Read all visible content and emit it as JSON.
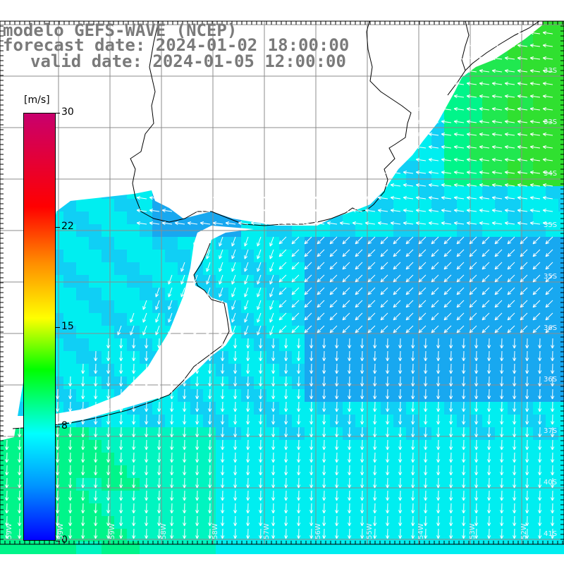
{
  "titles": {
    "line1": "modelo GEFS-WAVE (NCEP)",
    "line2": "forecast date: 2024-01-02 18:00:00",
    "line3": "valid date: 2024-01-05 12:00:00"
  },
  "colorbar": {
    "unit": "[m/s]",
    "ticks": [
      {
        "value": 30,
        "label": "30"
      },
      {
        "value": 22,
        "label": "22"
      },
      {
        "value": 15,
        "label": "15"
      },
      {
        "value": 8,
        "label": "8"
      },
      {
        "value": 0,
        "label": "0"
      }
    ]
  },
  "map": {
    "lat_labels": [
      "33S",
      "33S",
      "34S",
      "35S",
      "35S",
      "36S",
      "36S",
      "37S",
      "40S",
      "41S"
    ],
    "lon_labels": [
      "59W",
      "59W",
      "59W",
      "58W",
      "58W",
      "57W",
      "56W",
      "55W",
      "54W",
      "53W",
      "52W"
    ],
    "colors": {
      "land": "#ffffff",
      "grid": "#8c8c8c",
      "coast": "#000000",
      "vectors": "#ffffff"
    }
  }
}
